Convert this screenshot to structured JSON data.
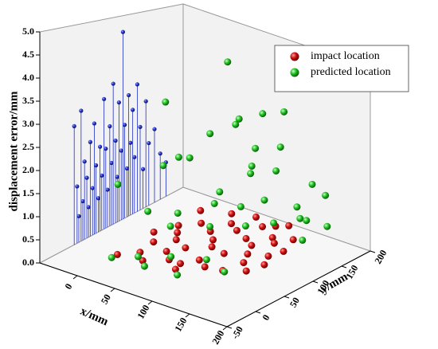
{
  "chart_data": {
    "type": "scatter3d",
    "xlabel": "x/mm",
    "ylabel": "y/mm",
    "zlabel": "displacement error/mm",
    "xlim": [
      -50,
      200
    ],
    "ylim": [
      -50,
      200
    ],
    "zlim": [
      0,
      5
    ],
    "xticks": [
      0,
      50,
      100,
      150,
      200
    ],
    "yticks": [
      -50,
      0,
      50,
      100,
      150,
      200
    ],
    "zticks": [
      {
        "value": 0,
        "label": "0.0"
      },
      0.5,
      {
        "value": 1,
        "label": "1.0"
      },
      1.5,
      {
        "value": 2,
        "label": "2.0"
      },
      2.5,
      {
        "value": 3,
        "label": "3.0"
      },
      3.5,
      {
        "value": 4,
        "label": "4.0"
      },
      4.5,
      {
        "value": 5,
        "label": "5.0"
      }
    ],
    "legend": "upper right",
    "series": [
      {
        "name": "impact location",
        "color": "#d01010",
        "x": [
          0,
          15,
          30,
          50,
          70,
          90,
          110,
          130,
          10,
          25,
          45,
          65,
          85,
          105,
          125,
          5,
          20,
          40,
          60,
          80,
          100,
          120,
          0,
          30,
          55,
          75,
          95,
          35,
          55,
          75,
          95,
          115,
          135,
          15,
          45,
          65,
          85,
          110,
          130,
          -5
        ],
        "y": [
          20,
          40,
          25,
          45,
          30,
          55,
          60,
          75,
          70,
          90,
          80,
          100,
          95,
          110,
          120,
          120,
          140,
          130,
          150,
          140,
          160,
          170,
          165,
          180,
          190,
          175,
          195,
          60,
          115,
          65,
          130,
          90,
          100,
          105,
          160,
          45,
          185,
          150,
          140,
          90
        ],
        "z": [
          0,
          0,
          0,
          0,
          0,
          0,
          0,
          0,
          0,
          0,
          0,
          0,
          0,
          0,
          0,
          0,
          0,
          0,
          0,
          0,
          0,
          0,
          0,
          0,
          0,
          0,
          0,
          0,
          0,
          0,
          0,
          0,
          0,
          0,
          0,
          0,
          0,
          0,
          0,
          0
        ]
      },
      {
        "name": "predicted location",
        "color": "#20c020",
        "x": [
          0,
          20,
          40,
          60,
          80,
          100,
          120,
          10,
          30,
          50,
          70,
          90,
          110,
          130,
          140,
          -10,
          5,
          20,
          40,
          60,
          80,
          100,
          120,
          60,
          80,
          40,
          100,
          40,
          20,
          0,
          -20,
          130,
          110,
          70,
          50,
          140,
          25,
          125,
          -30,
          150
        ],
        "y": [
          10,
          30,
          15,
          35,
          20,
          45,
          50,
          60,
          150,
          170,
          185,
          175,
          195,
          180,
          160,
          140,
          175,
          200,
          200,
          120,
          150,
          130,
          140,
          195,
          200,
          160,
          180,
          180,
          120,
          100,
          130,
          190,
          100,
          90,
          60,
          200,
          80,
          170,
          60,
          190
        ],
        "z": [
          0,
          0,
          0,
          0.2,
          0,
          0.3,
          0.1,
          0.8,
          0.5,
          0.4,
          0.6,
          0.2,
          0.3,
          0.5,
          0.2,
          1.5,
          2.0,
          2.2,
          1.0,
          1.2,
          1.8,
          2.5,
          2.0,
          2.8,
          2.0,
          4.2,
          3.2,
          2.6,
          1.8,
          1.6,
          2.9,
          1.4,
          0.8,
          0.6,
          1.0,
          1.1,
          0.4,
          0.9,
          1.2,
          0.4
        ]
      },
      {
        "color": "#2030c8",
        "y": [
          10,
          15,
          18,
          22,
          25,
          28,
          32,
          35,
          38,
          42,
          45,
          48,
          52,
          55,
          58,
          62,
          65,
          68,
          72,
          75,
          78,
          82,
          85,
          88,
          92,
          95,
          98,
          102,
          105,
          108,
          112,
          115,
          120,
          125,
          130,
          135,
          140,
          150,
          160,
          170
        ],
        "z": [
          2.7,
          1.3,
          0.6,
          3.0,
          0.9,
          1.8,
          1.4,
          0.7,
          2.2,
          1.1,
          2.6,
          1.6,
          0.8,
          2.0,
          1.3,
          3.1,
          1.9,
          0.9,
          2.4,
          1.5,
          3.4,
          2.0,
          1.1,
          2.9,
          1.7,
          4.6,
          2.3,
          1.2,
          3.0,
          1.8,
          2.6,
          1.4,
          3.2,
          2.1,
          1.0,
          2.7,
          1.6,
          1.9,
          1.2,
          0.9
        ]
      }
    ]
  }
}
